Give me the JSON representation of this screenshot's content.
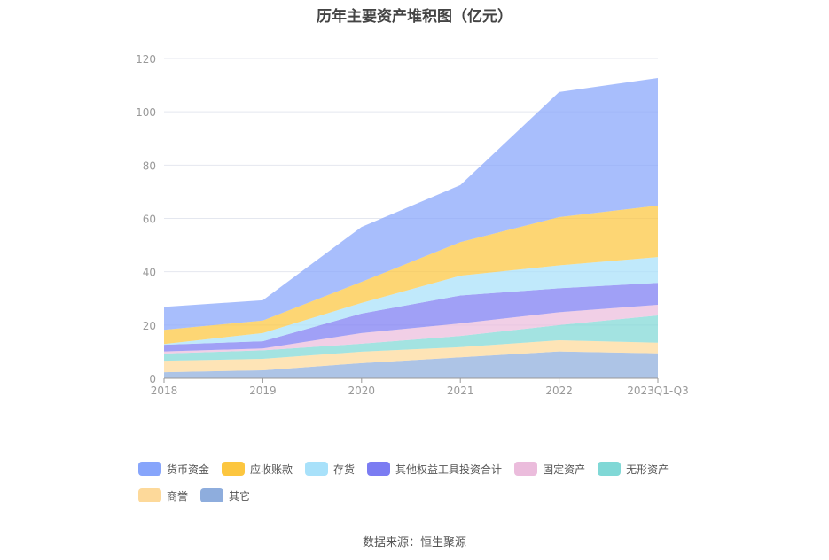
{
  "chart_data": {
    "type": "area",
    "stacked": true,
    "title": "历年主要资产堆积图（亿元）",
    "categories": [
      "2018",
      "2019",
      "2020",
      "2021",
      "2022",
      "2023Q1-Q3"
    ],
    "ylim": [
      0,
      120
    ],
    "yticks": [
      0,
      20,
      40,
      60,
      80,
      100,
      120
    ],
    "grid": true,
    "legend_position": "bottom",
    "series": [
      {
        "name": "其它",
        "color": "#8eaddd",
        "values": [
          2.3,
          3.0,
          5.7,
          7.9,
          10.1,
          9.4
        ]
      },
      {
        "name": "商誉",
        "color": "#fdd99a",
        "values": [
          4.3,
          4.3,
          4.3,
          3.8,
          4.2,
          4.0
        ]
      },
      {
        "name": "无形资产",
        "color": "#80d8d6",
        "values": [
          2.7,
          3.2,
          3.0,
          4.2,
          5.7,
          10.2
        ]
      },
      {
        "name": "固定资产",
        "color": "#ebbcdc",
        "values": [
          0.8,
          0.7,
          4.0,
          4.7,
          4.8,
          4.0
        ]
      },
      {
        "name": "其他权益工具投资合计",
        "color": "#7b7cf2",
        "values": [
          2.5,
          2.7,
          7.3,
          10.5,
          9.0,
          8.2
        ]
      },
      {
        "name": "存货",
        "color": "#a8e1fa",
        "values": [
          0.3,
          3.1,
          4.0,
          7.4,
          8.6,
          9.7
        ]
      },
      {
        "name": "应收账款",
        "color": "#fcc63f",
        "values": [
          5.3,
          4.7,
          7.9,
          12.6,
          18.1,
          19.3
        ]
      },
      {
        "name": "货币资金",
        "color": "#87a5fb",
        "values": [
          8.6,
          7.6,
          20.6,
          21.4,
          46.9,
          47.9
        ]
      }
    ]
  },
  "legend_order": [
    7,
    6,
    5,
    4,
    3,
    2,
    1,
    0
  ],
  "source": "数据来源：恒生聚源"
}
